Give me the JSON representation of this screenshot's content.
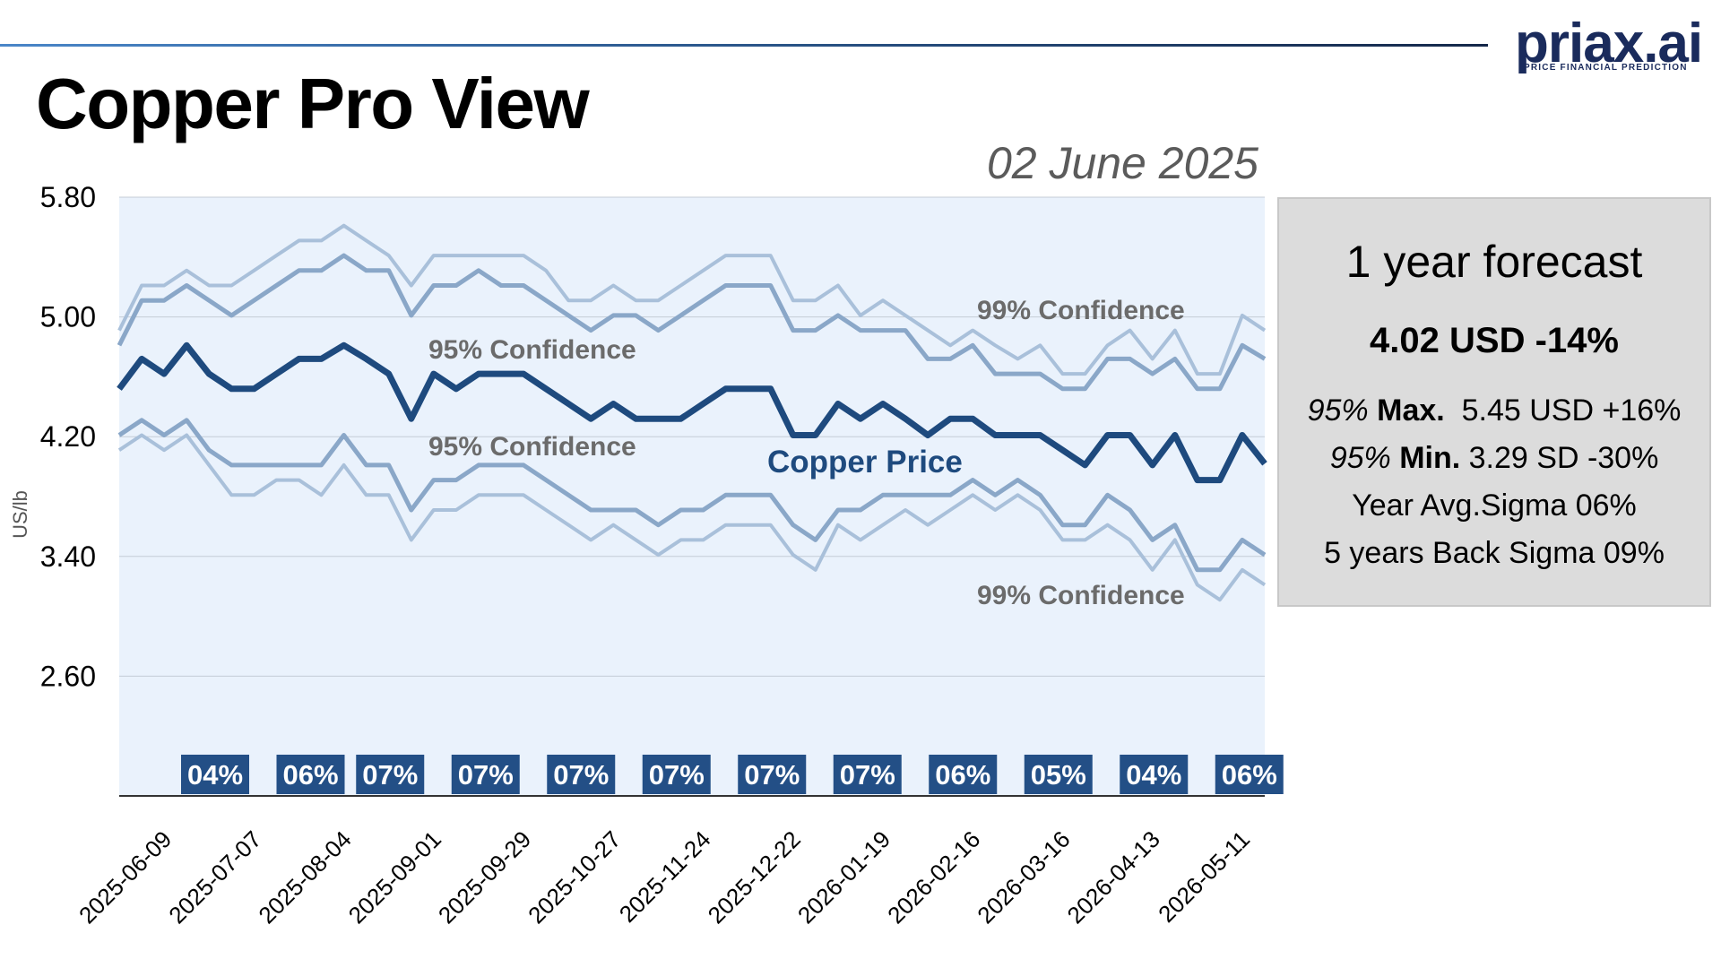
{
  "header": {
    "title": "Copper Pro View",
    "date": "02 June 2025",
    "logo_text": "priax.ai",
    "logo_tagline": "PRICE FINANCIAL PREDICTION"
  },
  "forecast": {
    "title": "1 year forecast",
    "headline": "4.02 USD -14%",
    "max_prefix": "95%",
    "max_label": "Max.",
    "max_value": "5.45 USD +16%",
    "min_prefix": "95%",
    "min_label": "Min.",
    "min_value": "3.29 SD -30%",
    "avg_sigma": "Year Avg.Sigma 06%",
    "back_sigma": "5 years Back Sigma 09%"
  },
  "colors": {
    "price": "#1e4a7e",
    "band95": "#8aa7c8",
    "band99": "#a9c0da",
    "plot_bg": "#eaf2fc",
    "sigma_badge": "#234f86"
  },
  "chart_data": {
    "type": "line",
    "ylabel": "US/lb",
    "ylim": [
      1.8,
      5.8
    ],
    "yticks": [
      "5.80",
      "5.00",
      "4.20",
      "3.40",
      "2.60"
    ],
    "ytick_values": [
      5.8,
      5.0,
      4.2,
      3.4,
      2.6
    ],
    "grid": true,
    "x_tick_labels": [
      "2025-06-09",
      "2025-07-07",
      "2025-08-04",
      "2025-09-01",
      "2025-09-29",
      "2025-10-27",
      "2025-11-24",
      "2025-12-22",
      "2026-01-19",
      "2026-02-16",
      "2026-03-16",
      "2026-04-13",
      "2026-05-11"
    ],
    "x_tick_index": [
      0,
      4,
      8,
      12,
      16,
      20,
      24,
      28,
      32,
      36,
      40,
      44,
      48
    ],
    "series": [
      {
        "name": "Copper Price",
        "role": "price",
        "values": [
          4.52,
          4.72,
          4.62,
          4.81,
          4.62,
          4.52,
          4.52,
          4.62,
          4.72,
          4.72,
          4.81,
          4.72,
          4.62,
          4.32,
          4.62,
          4.52,
          4.62,
          4.62,
          4.62,
          4.52,
          4.42,
          4.32,
          4.42,
          4.32,
          4.32,
          4.32,
          4.42,
          4.52,
          4.52,
          4.52,
          4.21,
          4.21,
          4.42,
          4.32,
          4.42,
          4.32,
          4.21,
          4.32,
          4.32,
          4.21,
          4.21,
          4.21,
          4.11,
          4.01,
          4.21,
          4.21,
          4.01,
          4.21,
          3.91,
          3.91,
          4.21,
          4.02
        ]
      },
      {
        "name": "95% Confidence",
        "role": "upper95",
        "values": [
          4.81,
          5.11,
          5.11,
          5.21,
          5.11,
          5.01,
          5.11,
          5.21,
          5.31,
          5.31,
          5.41,
          5.31,
          5.31,
          5.01,
          5.21,
          5.21,
          5.31,
          5.21,
          5.21,
          5.11,
          5.01,
          4.91,
          5.01,
          5.01,
          4.91,
          5.01,
          5.11,
          5.21,
          5.21,
          5.21,
          4.91,
          4.91,
          5.01,
          4.91,
          4.91,
          4.91,
          4.72,
          4.72,
          4.81,
          4.62,
          4.62,
          4.62,
          4.52,
          4.52,
          4.72,
          4.72,
          4.62,
          4.72,
          4.52,
          4.52,
          4.81,
          4.72
        ]
      },
      {
        "name": "99% Confidence",
        "role": "upper99",
        "values": [
          4.91,
          5.21,
          5.21,
          5.31,
          5.21,
          5.21,
          5.31,
          5.41,
          5.51,
          5.51,
          5.61,
          5.51,
          5.41,
          5.21,
          5.41,
          5.41,
          5.41,
          5.41,
          5.41,
          5.31,
          5.11,
          5.11,
          5.21,
          5.11,
          5.11,
          5.21,
          5.31,
          5.41,
          5.41,
          5.41,
          5.11,
          5.11,
          5.21,
          5.01,
          5.11,
          5.01,
          4.91,
          4.81,
          4.91,
          4.81,
          4.72,
          4.81,
          4.62,
          4.62,
          4.81,
          4.91,
          4.72,
          4.91,
          4.62,
          4.62,
          5.01,
          4.91
        ]
      },
      {
        "name": "95% Confidence",
        "role": "lower95",
        "values": [
          4.21,
          4.31,
          4.21,
          4.31,
          4.11,
          4.01,
          4.01,
          4.01,
          4.01,
          4.01,
          4.21,
          4.01,
          4.01,
          3.71,
          3.91,
          3.91,
          4.01,
          4.01,
          4.01,
          3.91,
          3.81,
          3.71,
          3.71,
          3.71,
          3.61,
          3.71,
          3.71,
          3.81,
          3.81,
          3.81,
          3.61,
          3.51,
          3.71,
          3.71,
          3.81,
          3.81,
          3.81,
          3.81,
          3.91,
          3.81,
          3.91,
          3.81,
          3.61,
          3.61,
          3.81,
          3.71,
          3.51,
          3.61,
          3.31,
          3.31,
          3.51,
          3.41
        ]
      },
      {
        "name": "99% Confidence",
        "role": "lower99",
        "values": [
          4.11,
          4.21,
          4.11,
          4.21,
          4.01,
          3.81,
          3.81,
          3.91,
          3.91,
          3.81,
          4.01,
          3.81,
          3.81,
          3.51,
          3.71,
          3.71,
          3.81,
          3.81,
          3.81,
          3.71,
          3.61,
          3.51,
          3.61,
          3.51,
          3.41,
          3.51,
          3.51,
          3.61,
          3.61,
          3.61,
          3.41,
          3.31,
          3.61,
          3.51,
          3.61,
          3.71,
          3.61,
          3.71,
          3.81,
          3.71,
          3.81,
          3.71,
          3.51,
          3.51,
          3.61,
          3.51,
          3.31,
          3.51,
          3.21,
          3.11,
          3.31,
          3.21
        ]
      }
    ],
    "annotations": [
      {
        "text": "99% Confidence",
        "role": "upper99"
      },
      {
        "text": "95% Confidence",
        "role": "upper95"
      },
      {
        "text": "95% Confidence",
        "role": "lower95"
      },
      {
        "text": "Copper Price",
        "role": "price"
      },
      {
        "text": "99% Confidence",
        "role": "lower99"
      }
    ],
    "sigma_badges": [
      {
        "label": "04%",
        "index": 4
      },
      {
        "label": "06%",
        "index": 10
      },
      {
        "label": "07%",
        "index": 15
      },
      {
        "label": "07%",
        "index": 21
      },
      {
        "label": "07%",
        "index": 27
      },
      {
        "label": "07%",
        "index": 33
      },
      {
        "label": "07%",
        "index": 39
      },
      {
        "label": "07%",
        "index": 45
      },
      {
        "label": "06%",
        "index": 51
      },
      {
        "label": "05%",
        "index": 57
      },
      {
        "label": "04%",
        "index": 63
      },
      {
        "label": "06%",
        "index": 69
      }
    ]
  }
}
